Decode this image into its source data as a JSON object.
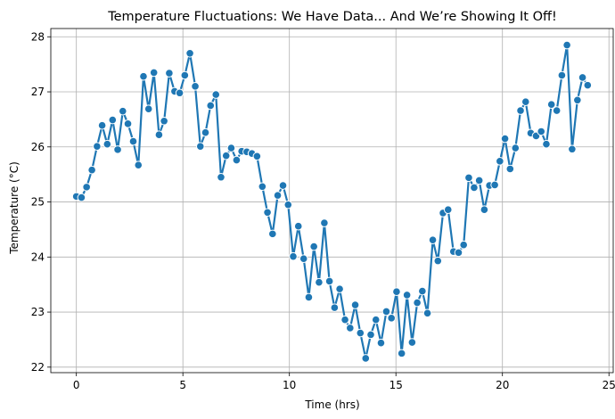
{
  "chart_data": {
    "type": "line",
    "title": "Temperature Fluctuations: We Have Data... And We’re Showing It Off!",
    "xlabel": "Time (hrs)",
    "ylabel": "Temperature (°C)",
    "xlim": [
      -1.2,
      25.2
    ],
    "ylim": [
      21.9,
      28.15
    ],
    "xticks": [
      0,
      5,
      10,
      15,
      20,
      25
    ],
    "yticks": [
      22,
      23,
      24,
      25,
      26,
      27,
      28
    ],
    "grid": true,
    "color": "#1f77b4",
    "series": [
      {
        "x": [
          0,
          0.24,
          0.48,
          0.73,
          0.97,
          1.21,
          1.45,
          1.7,
          1.94,
          2.18,
          2.42,
          2.67,
          2.91,
          3.15,
          3.39,
          3.64,
          3.88,
          4.12,
          4.36,
          4.61,
          4.85,
          5.09,
          5.33,
          5.58,
          5.82,
          6.06,
          6.3,
          6.55,
          6.79,
          7.03,
          7.27,
          7.52,
          7.76,
          8,
          8.24,
          8.48,
          8.73,
          8.97,
          9.21,
          9.45,
          9.7,
          9.94,
          10.18,
          10.42,
          10.67,
          10.91,
          11.15,
          11.39,
          11.64,
          11.88,
          12.12,
          12.36,
          12.61,
          12.85,
          13.09,
          13.33,
          13.58,
          13.82,
          14.06,
          14.3,
          14.55,
          14.79,
          15.03,
          15.27,
          15.52,
          15.76,
          16,
          16.24,
          16.48,
          16.73,
          16.97,
          17.21,
          17.45,
          17.7,
          17.94,
          18.18,
          18.42,
          18.67,
          18.91,
          19.15,
          19.39,
          19.64,
          19.88,
          20.12,
          20.36,
          20.61,
          20.85,
          21.09,
          21.33,
          21.58,
          21.82,
          22.06,
          22.3,
          22.55,
          22.79,
          23.03,
          23.27,
          23.52,
          23.76,
          24
        ],
        "values": [
          25.1,
          25.08,
          25.27,
          25.58,
          26.01,
          26.39,
          26.05,
          26.49,
          25.95,
          26.65,
          26.42,
          26.1,
          25.67,
          27.28,
          26.69,
          27.35,
          26.22,
          26.47,
          27.34,
          27.01,
          26.98,
          27.3,
          27.7,
          27.1,
          26.01,
          26.26,
          26.75,
          26.95,
          25.45,
          25.84,
          25.98,
          25.76,
          25.92,
          25.91,
          25.88,
          25.83,
          25.28,
          24.81,
          24.42,
          25.12,
          25.3,
          24.95,
          24.01,
          24.56,
          23.97,
          23.27,
          24.19,
          23.54,
          24.62,
          23.56,
          23.08,
          23.42,
          22.86,
          22.71,
          23.13,
          22.62,
          22.16,
          22.59,
          22.86,
          22.44,
          23.01,
          22.89,
          23.37,
          22.25,
          23.31,
          22.45,
          23.17,
          23.38,
          22.98,
          24.31,
          23.93,
          24.8,
          24.86,
          24.1,
          24.08,
          24.22,
          25.44,
          25.26,
          25.39,
          24.86,
          25.3,
          25.31,
          25.74,
          26.15,
          25.6,
          25.98,
          26.66,
          26.82,
          26.25,
          26.2,
          26.28,
          26.05,
          26.77,
          26.66,
          27.3,
          27.85,
          25.96,
          26.85,
          27.26,
          27.12
        ]
      }
    ]
  }
}
